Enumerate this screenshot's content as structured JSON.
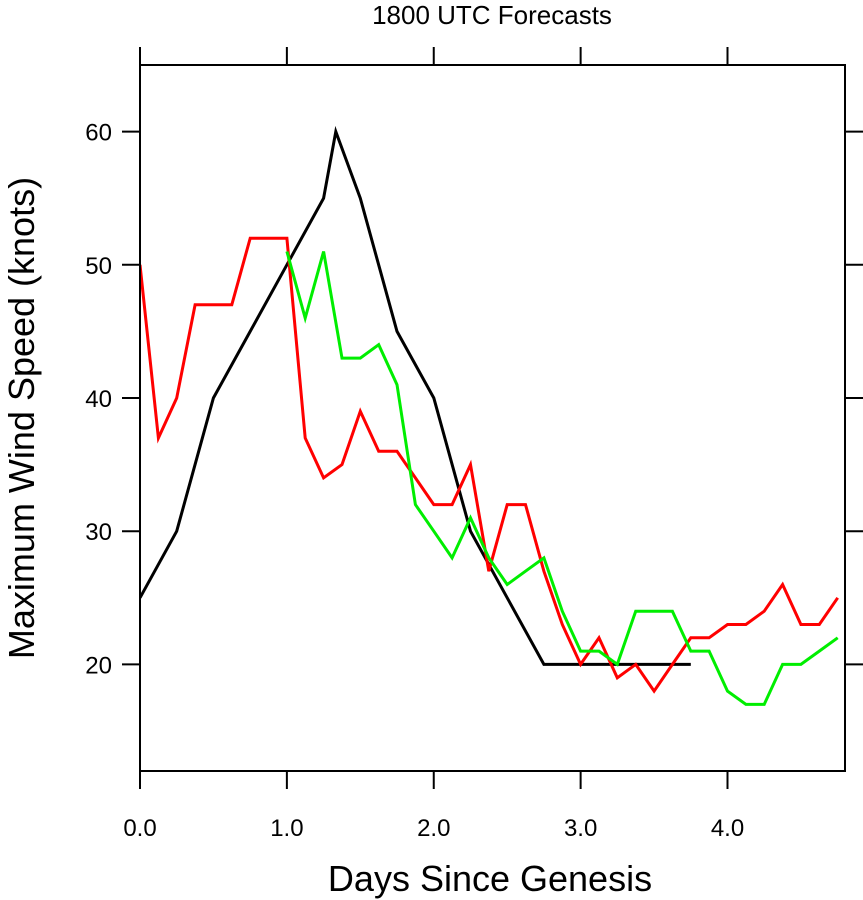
{
  "chart_data": {
    "type": "line",
    "title": "1800 UTC Forecasts",
    "xlabel": "Days Since Genesis",
    "ylabel": "Maximum Wind Speed (knots)",
    "xlim": [
      0,
      4.8
    ],
    "ylim": [
      12,
      65
    ],
    "xticks": [
      0,
      1,
      2,
      3,
      4
    ],
    "xtick_labels": [
      "0.0",
      "1.0",
      "2.0",
      "3.0",
      "4.0"
    ],
    "yticks": [
      20,
      30,
      40,
      50,
      60
    ],
    "ytick_labels": [
      "20",
      "30",
      "40",
      "50",
      "60"
    ],
    "grid": false,
    "legend": "none",
    "series": [
      {
        "color": "#000000",
        "x": [
          0,
          0.25,
          0.5,
          0.75,
          1.0,
          1.25,
          1.333,
          1.5,
          1.75,
          2.0,
          2.25,
          2.5,
          2.75,
          3.0,
          3.25,
          3.5,
          3.75
        ],
        "y": [
          25,
          30,
          40,
          45,
          50,
          55,
          60,
          55,
          45,
          40,
          30,
          25,
          20,
          20,
          20,
          20,
          20
        ]
      },
      {
        "color": "#ff0000",
        "x": [
          0,
          0.125,
          0.25,
          0.375,
          0.5,
          0.625,
          0.75,
          0.875,
          1.0,
          1.125,
          1.25,
          1.375,
          1.5,
          1.625,
          1.75,
          1.875,
          2.0,
          2.125,
          2.25,
          2.375,
          2.5,
          2.625,
          2.75,
          2.875,
          3.0,
          3.125,
          3.25,
          3.375,
          3.5,
          3.625,
          3.75,
          3.875,
          4.0,
          4.125,
          4.25,
          4.375,
          4.5,
          4.625,
          4.75
        ],
        "y": [
          50,
          37,
          40,
          47,
          47,
          47,
          52,
          52,
          52,
          37,
          34,
          35,
          39,
          36,
          36,
          34,
          32,
          32,
          35,
          27,
          32,
          32,
          27,
          23,
          20,
          22,
          19,
          20,
          18,
          20,
          22,
          22,
          23,
          23,
          24,
          26,
          23,
          23,
          25
        ]
      },
      {
        "color": "#00ee00",
        "x": [
          1.0,
          1.125,
          1.25,
          1.375,
          1.5,
          1.625,
          1.75,
          1.875,
          2.0,
          2.125,
          2.25,
          2.375,
          2.5,
          2.625,
          2.75,
          2.875,
          3.0,
          3.125,
          3.25,
          3.375,
          3.5,
          3.625,
          3.75,
          3.875,
          4.0,
          4.125,
          4.25,
          4.375,
          4.5,
          4.625,
          4.75
        ],
        "y": [
          51,
          46,
          51,
          43,
          43,
          44,
          41,
          32,
          30,
          28,
          31,
          28,
          26,
          27,
          28,
          24,
          21,
          21,
          20,
          24,
          24,
          24,
          21,
          21,
          18,
          17,
          17,
          20,
          20,
          21,
          22
        ]
      }
    ]
  }
}
